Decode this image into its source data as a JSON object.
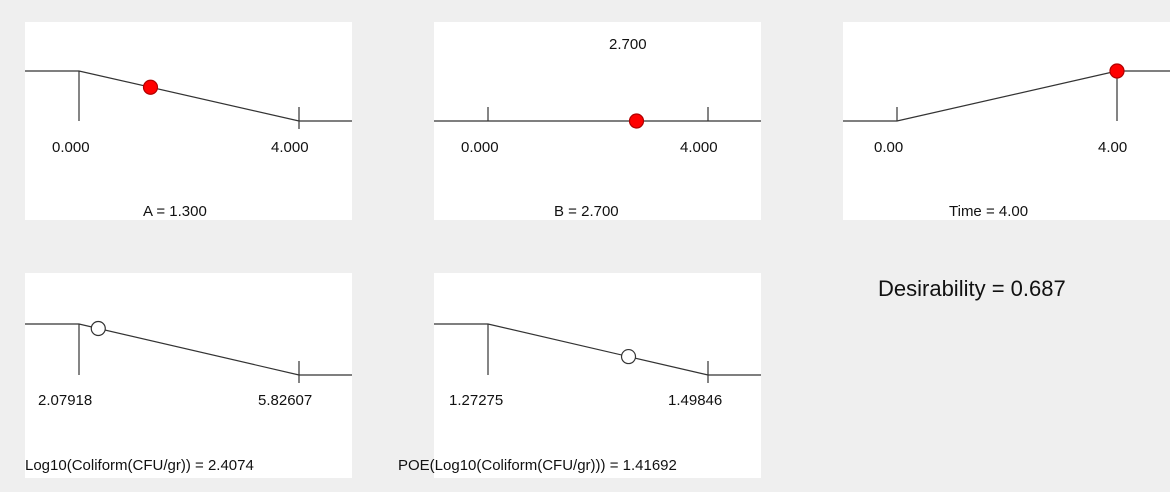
{
  "chart_data": [
    {
      "type": "line",
      "factor": "A",
      "x_low": "0.000",
      "x_high": "4.000",
      "caption": "A = 1.300",
      "current": 1.3,
      "range": [
        0,
        4
      ],
      "ramp_direction": "decreasing",
      "marker": "filled",
      "marker_color": "#ff0000"
    },
    {
      "type": "line",
      "factor": "B",
      "x_low": "0.000",
      "x_high": "4.000",
      "caption": "B = 2.700",
      "value_label": "2.700",
      "current": 2.7,
      "range": [
        0,
        4
      ],
      "ramp_direction": "flat",
      "marker": "filled",
      "marker_color": "#ff0000"
    },
    {
      "type": "line",
      "factor": "Time",
      "x_low": "0.00",
      "x_high": "4.00",
      "caption": "Time = 4.00",
      "current": 4.0,
      "range": [
        0,
        4
      ],
      "ramp_direction": "increasing",
      "marker": "filled",
      "marker_color": "#ff0000"
    },
    {
      "type": "line",
      "response": "Log10(Coliform(CFU/gr))",
      "x_low": "2.07918",
      "x_high": "5.82607",
      "caption": "Log10(Coliform(CFU/gr)) = 2.4074",
      "current": 2.4074,
      "range": [
        2.07918,
        5.82607
      ],
      "ramp_direction": "decreasing",
      "marker": "open"
    },
    {
      "type": "line",
      "response": "POE(Log10(Coliform(CFU/gr)))",
      "x_low": "1.27275",
      "x_high": "1.49846",
      "caption": "POE(Log10(Coliform(CFU/gr))) = 1.41692",
      "current": 1.41692,
      "range": [
        1.27275,
        1.49846
      ],
      "ramp_direction": "decreasing",
      "marker": "open"
    }
  ],
  "desirability": "Desirability = 0.687"
}
